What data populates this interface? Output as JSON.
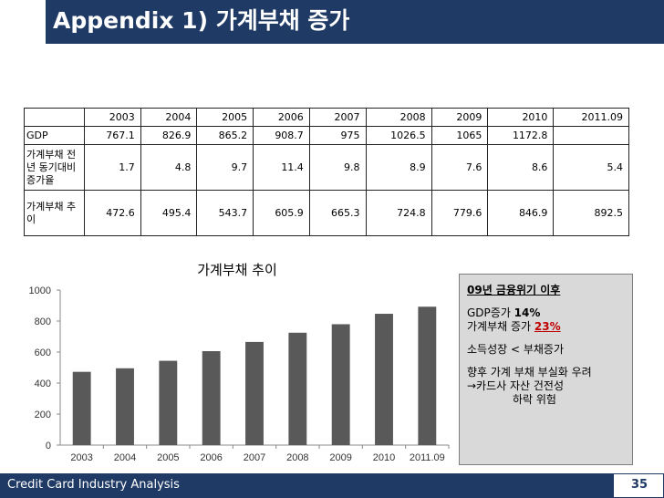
{
  "title": "Appendix 1) 가계부채 증가",
  "table": {
    "years": [
      "2003",
      "2004",
      "2005",
      "2006",
      "2007",
      "2008",
      "2009",
      "2010",
      "2011.09"
    ],
    "rows": [
      {
        "label": "GDP",
        "values": [
          "767.1",
          "826.9",
          "865.2",
          "908.7",
          "975",
          "1026.5",
          "1065",
          "1172.8",
          ""
        ]
      },
      {
        "label": "가계부채 전년 동기대비 증가율",
        "values": [
          "1.7",
          "4.8",
          "9.7",
          "11.4",
          "9.8",
          "8.9",
          "7.6",
          "8.6",
          "5.4"
        ]
      },
      {
        "label": "가계부채 추이",
        "values": [
          "472.6",
          "495.4",
          "543.7",
          "605.9",
          "665.3",
          "724.8",
          "779.6",
          "846.9",
          "892.5"
        ]
      }
    ]
  },
  "chart_data": {
    "type": "bar",
    "title": "가계부채 추이",
    "categories": [
      "2003",
      "2004",
      "2005",
      "2006",
      "2007",
      "2008",
      "2009",
      "2010",
      "2011.09"
    ],
    "values": [
      472.6,
      495.4,
      543.7,
      605.9,
      665.3,
      724.8,
      779.6,
      846.9,
      892.5
    ],
    "yticks": [
      "0",
      "200",
      "400",
      "600",
      "800",
      "1000"
    ],
    "ylim": [
      0,
      1000
    ],
    "bar_color": "#595959",
    "grid": false
  },
  "info": {
    "heading": "09년 금융위기 이후",
    "gdp_label": "GDP증가 ",
    "gdp_value": "14%",
    "debt_label": "가계부채 증가 ",
    "debt_value": "23%",
    "line3": "소득성장 < 부채증가",
    "line4": "향후 가계 부채 부실화 우려",
    "line5": "→카드사 자산 건전성",
    "line6": "하락 위험"
  },
  "footer": {
    "text": "Credit Card Industry Analysis",
    "page": "35"
  },
  "colors": {
    "navy": "#1f3a64",
    "bar": "#595959",
    "box": "#d9d9d9",
    "accent_red": "#c00000"
  }
}
